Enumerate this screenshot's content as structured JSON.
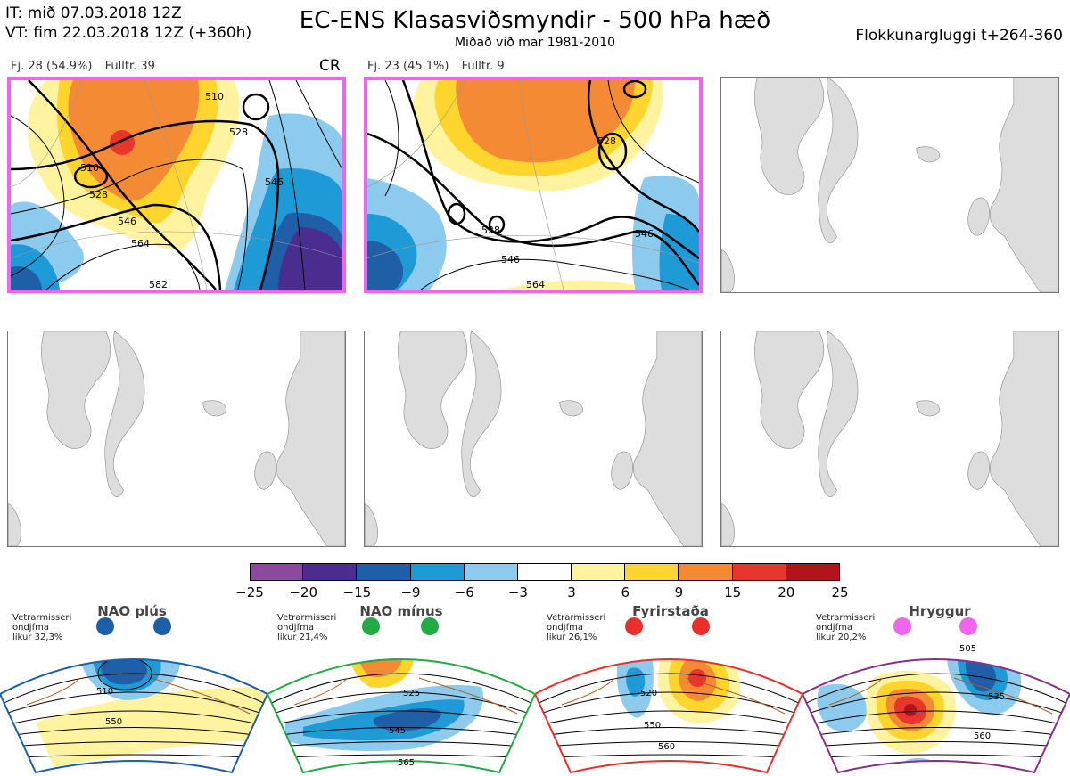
{
  "header": {
    "line1": "IT: mið 07.03.2018 12Z",
    "line2": "VT: fim 22.03.2018 12Z  (+360h)",
    "title": "EC-ENS Klasasviðsmyndir - 500 hPa hæð",
    "subtitle": "Miðað við mar 1981-2010",
    "right": "Flokkunargluggi t+264-360"
  },
  "panels": [
    {
      "label_a": "Fj. 28 (54.9%)",
      "label_b": "Fulltr. 39",
      "tag": "CR",
      "active": true,
      "contours": [
        "510",
        "510",
        "528",
        "546",
        "564",
        "582",
        "546",
        "528"
      ]
    },
    {
      "label_a": "Fj. 23 (45.1%)",
      "label_b": "Fulltr. 9",
      "tag": "",
      "active": true,
      "contours": [
        "528",
        "528",
        "546",
        "564",
        "546"
      ]
    }
  ],
  "colorbar": {
    "ticks": [
      "−25",
      "−20",
      "−15",
      "−9",
      "−6",
      "−3",
      "3",
      "6",
      "9",
      "15",
      "20",
      "25"
    ],
    "colors": [
      "#8b4a9e",
      "#4b2d8f",
      "#1f5fa8",
      "#1e9ad6",
      "#8ccbee",
      "#ffffff",
      "#fff3a0",
      "#fed52d",
      "#f48a34",
      "#e8362e",
      "#b3141b"
    ]
  },
  "regimes": [
    {
      "name": "NAO plús",
      "note": [
        "Vetrarmisseri",
        "ondjfma",
        "líkur 32,3%"
      ],
      "color": "#1b5fa8",
      "dot": "#1b5fa8",
      "labels": [
        "510",
        "550"
      ]
    },
    {
      "name": "NAO mínus",
      "note": [
        "Vetrarmisseri",
        "ondjfma",
        "líkur 21,4%"
      ],
      "color": "#22aa44",
      "dot": "#22aa44",
      "labels": [
        "525",
        "545",
        "565"
      ]
    },
    {
      "name": "Fyrirstaða",
      "note": [
        "Vetrarmisseri",
        "ondjfma",
        "líkur 26,1%"
      ],
      "color": "#e8302a",
      "dot": "#e8302a",
      "labels": [
        "520",
        "550",
        "560"
      ]
    },
    {
      "name": "Hryggur",
      "note": [
        "Vetrarmisseri",
        "ondjfma",
        "líkur 20,2%"
      ],
      "color": "#8a2e8c",
      "dot": "#ee66ee",
      "labels": [
        "505",
        "535",
        "560"
      ]
    }
  ]
}
